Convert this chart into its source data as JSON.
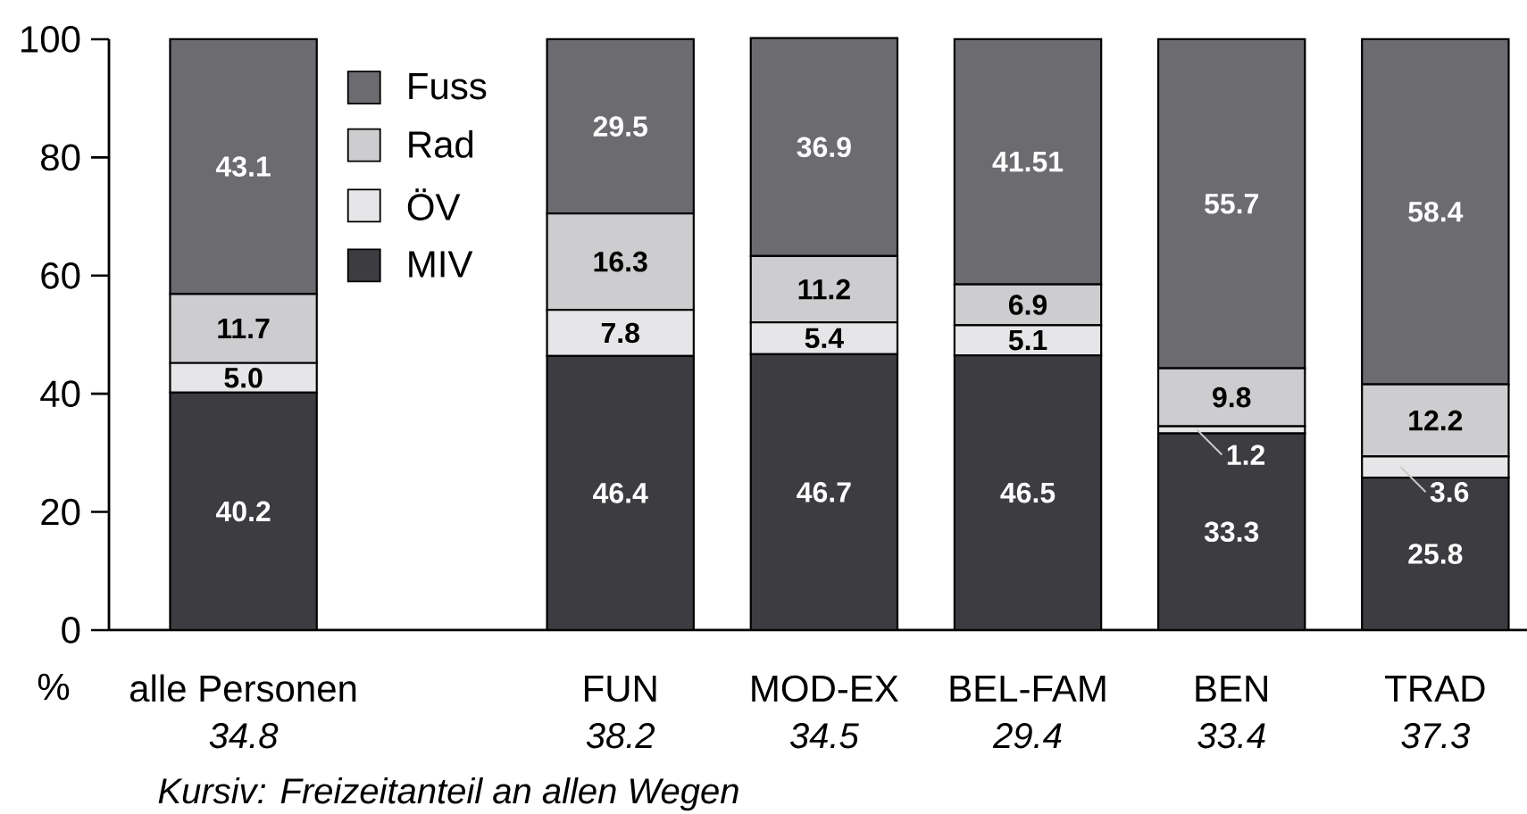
{
  "chart_data": {
    "type": "bar",
    "stacked": true,
    "ylabel": "%",
    "categories": [
      "alle Personen",
      "FUN",
      "MOD-EX",
      "BEL-FAM",
      "BEN",
      "TRAD"
    ],
    "series": [
      {
        "name": "MIV",
        "color": "#3d3c40",
        "values": [
          40.2,
          46.4,
          46.7,
          46.5,
          33.3,
          25.8
        ],
        "value_labels": [
          "40.2",
          "46.4",
          "46.7",
          "46.5",
          "33.3",
          "25.8"
        ]
      },
      {
        "name": "ÖV",
        "color": "#e6e6e8",
        "values": [
          5.0,
          7.8,
          5.4,
          5.1,
          1.2,
          3.6
        ],
        "value_labels": [
          "5.0",
          "7.8",
          "5.4",
          "5.1",
          "1.2",
          "3.6"
        ]
      },
      {
        "name": "Rad",
        "color": "#cdcdd0",
        "values": [
          11.7,
          16.3,
          11.2,
          6.9,
          9.8,
          12.2
        ],
        "value_labels": [
          "11.7",
          "16.3",
          "11.2",
          "6.9",
          "9.8",
          "12.2"
        ]
      },
      {
        "name": "Fuss",
        "color": "#6c6b70",
        "values": [
          43.1,
          29.5,
          36.9,
          41.51,
          55.7,
          58.4
        ],
        "value_labels": [
          "43.1",
          "29.5",
          "36.9",
          "41.51",
          "55.7",
          "58.4"
        ]
      }
    ],
    "ylim": [
      0,
      100
    ],
    "yticks": [
      0,
      20,
      40,
      60,
      80,
      100
    ],
    "legend": "top left",
    "annotations": [
      "34.8",
      "38.2",
      "34.5",
      "29.4",
      "33.4",
      "37.3",
      "Kursiv: Freizeitanteil an allen Wegen"
    ]
  }
}
